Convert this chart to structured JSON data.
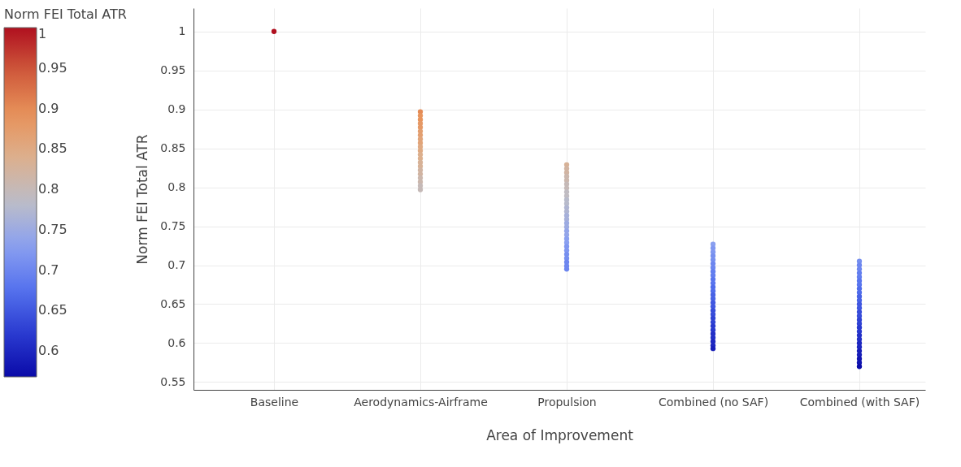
{
  "chart_data": {
    "type": "scatter",
    "xlabel": "Area of Improvement",
    "ylabel": "Norm FEI Total ATR",
    "clabel": "Norm FEI Total ATR",
    "categories": [
      "Baseline",
      "Aerodynamics-Airframe",
      "Propulsion",
      "Combined (no SAF)",
      "Combined (with SAF)"
    ],
    "series": [
      {
        "values": [
          1.0,
          0.897,
          0.829,
          0.727,
          0.705
        ],
        "colors": [
          "#b0101f",
          "#e48b56",
          "#d7b297",
          "#8aa0f0",
          "#768fef"
        ]
      },
      {
        "values": [
          null,
          0.892,
          0.824,
          0.722,
          0.7
        ],
        "colors": [
          null,
          "#e8945c",
          "#d1b4a2",
          "#8097f0",
          "#6d86ef"
        ]
      },
      {
        "values": [
          null,
          0.887,
          0.819,
          0.717,
          0.695
        ],
        "colors": [
          null,
          "#e8945c",
          "#d1b4a2",
          "#8097f0",
          "#6d86ef"
        ]
      },
      {
        "values": [
          null,
          0.882,
          0.814,
          0.712,
          0.69
        ],
        "colors": [
          null,
          "#e59966",
          "#cbb7ad",
          "#768fef",
          "#637eef"
        ]
      },
      {
        "values": [
          null,
          0.877,
          0.809,
          0.707,
          0.685
        ],
        "colors": [
          null,
          "#e59966",
          "#cbb7ad",
          "#768fef",
          "#637eef"
        ]
      },
      {
        "values": [
          null,
          0.872,
          0.804,
          0.702,
          0.68
        ],
        "colors": [
          null,
          "#e39f70",
          "#c5b9b7",
          "#6d86ef",
          "#5975ee"
        ]
      },
      {
        "values": [
          null,
          0.867,
          0.799,
          0.697,
          0.675
        ],
        "colors": [
          null,
          "#e39f70",
          "#c5b9b7",
          "#6d86ef",
          "#5975ee"
        ]
      },
      {
        "values": [
          null,
          0.862,
          0.794,
          0.692,
          0.67
        ],
        "colors": [
          null,
          "#e1a479",
          "#c0bcc2",
          "#637eef",
          "#506ceb"
        ]
      },
      {
        "values": [
          null,
          0.857,
          0.789,
          0.687,
          0.665
        ],
        "colors": [
          null,
          "#e1a479",
          "#c0bcc2",
          "#637eef",
          "#506ceb"
        ]
      },
      {
        "values": [
          null,
          0.852,
          0.784,
          0.682,
          0.66
        ],
        "colors": [
          null,
          "#dfaa83",
          "#b8bbcb",
          "#5975ee",
          "#4862e5"
        ]
      },
      {
        "values": [
          null,
          0.847,
          0.779,
          0.677,
          0.655
        ],
        "colors": [
          null,
          "#dfaa83",
          "#b8bbcb",
          "#5975ee",
          "#4862e5"
        ]
      },
      {
        "values": [
          null,
          0.842,
          0.774,
          0.672,
          0.65
        ],
        "colors": [
          null,
          "#dcaf8d",
          "#afb5d2",
          "#506ceb",
          "#4057e0"
        ]
      },
      {
        "values": [
          null,
          0.837,
          0.769,
          0.667,
          0.645
        ],
        "colors": [
          null,
          "#dcaf8d",
          "#afb5d2",
          "#506ceb",
          "#4057e0"
        ]
      },
      {
        "values": [
          null,
          0.832,
          0.764,
          0.662,
          0.64
        ],
        "colors": [
          null,
          "#d7b297",
          "#a6b0da",
          "#4862e5",
          "#384dda"
        ]
      },
      {
        "values": [
          null,
          0.827,
          0.759,
          0.657,
          0.635
        ],
        "colors": [
          null,
          "#d7b297",
          "#a6b0da",
          "#4862e5",
          "#384dda"
        ]
      },
      {
        "values": [
          null,
          0.822,
          0.754,
          0.652,
          0.63
        ],
        "colors": [
          null,
          "#d1b4a2",
          "#9cabe1",
          "#4057e0",
          "#3043d4"
        ]
      },
      {
        "values": [
          null,
          0.817,
          0.749,
          0.647,
          0.625
        ],
        "colors": [
          null,
          "#d1b4a2",
          "#9cabe1",
          "#4057e0",
          "#3043d4"
        ]
      },
      {
        "values": [
          null,
          0.812,
          0.744,
          0.642,
          0.62
        ],
        "colors": [
          null,
          "#cbb7ad",
          "#93a5e9",
          "#384dda",
          "#2939cf"
        ]
      },
      {
        "values": [
          null,
          0.807,
          0.739,
          0.637,
          0.615
        ],
        "colors": [
          null,
          "#cbb7ad",
          "#93a5e9",
          "#384dda",
          "#2939cf"
        ]
      },
      {
        "values": [
          null,
          0.802,
          0.734,
          0.632,
          0.61
        ],
        "colors": [
          null,
          "#c5b9b7",
          "#8aa0f0",
          "#3043d4",
          "#2330c7"
        ]
      },
      {
        "values": [
          null,
          0.797,
          0.729,
          0.627,
          0.605
        ],
        "colors": [
          null,
          "#c5b9b7",
          "#8aa0f0",
          "#3043d4",
          "#2330c7"
        ]
      },
      {
        "values": [
          null,
          null,
          0.724,
          0.622,
          0.6
        ],
        "colors": [
          null,
          null,
          "#8097f0",
          "#2939cf",
          "#1d27c0"
        ]
      },
      {
        "values": [
          null,
          null,
          0.719,
          0.617,
          0.595
        ],
        "colors": [
          null,
          null,
          "#8097f0",
          "#2939cf",
          "#1d27c0"
        ]
      },
      {
        "values": [
          null,
          null,
          0.714,
          0.612,
          0.59
        ],
        "colors": [
          null,
          null,
          "#768fef",
          "#2330c7",
          "#171eb8"
        ]
      },
      {
        "values": [
          null,
          null,
          0.709,
          0.607,
          0.585
        ],
        "colors": [
          null,
          null,
          "#768fef",
          "#2330c7",
          "#171eb8"
        ]
      },
      {
        "values": [
          null,
          null,
          0.704,
          0.602,
          0.58
        ],
        "colors": [
          null,
          null,
          "#6d86ef",
          "#1d27c0",
          "#1115b1"
        ]
      },
      {
        "values": [
          null,
          null,
          0.699,
          0.597,
          0.575
        ],
        "colors": [
          null,
          null,
          "#6d86ef",
          "#1d27c0",
          "#1115b1"
        ]
      },
      {
        "values": [
          null,
          null,
          0.695,
          0.593,
          0.57
        ],
        "colors": [
          null,
          null,
          "#6d86ef",
          "#171eb8",
          "#0b0ca9"
        ]
      }
    ],
    "ylim": [
      0.54,
      1.03
    ],
    "yticks": [
      0.55,
      0.6,
      0.65,
      0.7,
      0.75,
      0.8,
      0.85,
      0.9,
      0.95,
      1
    ],
    "clim": [
      0.568,
      1
    ],
    "cticks": [
      0.6,
      0.65,
      0.7,
      0.75,
      0.8,
      0.85,
      0.9,
      0.95,
      1
    ],
    "grid": true,
    "marker": "circle"
  }
}
